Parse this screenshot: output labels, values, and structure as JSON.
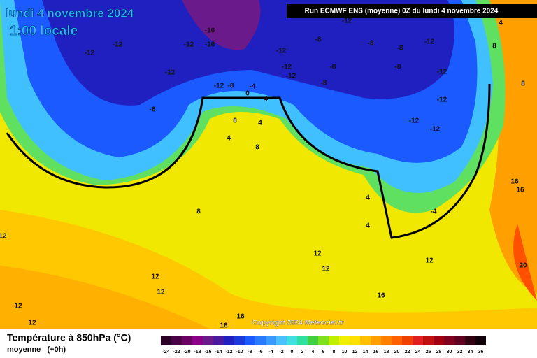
{
  "header": {
    "date": "lundi 4 novembre 2024",
    "time": "1:00 locale",
    "run": "Run ECMWF ENS (moyenne) 0Z du lundi 4 novembre 2024"
  },
  "copyright": "Copyright 2024 Meteociel.fr",
  "footer": {
    "title": "Température à 850hPa (°C)",
    "subtitle": "moyenne   (+0h)"
  },
  "contour_labels": [
    -16,
    -16,
    -12,
    -12,
    -12,
    -12,
    -12,
    -8,
    -12,
    -12,
    -12,
    -8,
    -8,
    -8,
    -8,
    -8,
    -8,
    -12,
    -12,
    -12,
    -12,
    -12,
    -12,
    -8,
    0,
    -4,
    4,
    8,
    4,
    4,
    8,
    4,
    4,
    -4,
    8,
    12,
    12,
    12,
    12,
    12,
    12,
    12,
    16,
    16,
    8,
    20,
    16,
    16,
    16,
    8,
    4,
    12
  ],
  "scale": {
    "ticks": [
      -24,
      -22,
      -20,
      -18,
      -16,
      -14,
      -12,
      -10,
      -8,
      -6,
      -4,
      -2,
      0,
      2,
      4,
      6,
      8,
      10,
      12,
      14,
      16,
      18,
      20,
      22,
      24,
      26,
      28,
      30,
      32,
      34,
      36
    ],
    "colors": [
      "#2a0028",
      "#4b0046",
      "#6a0066",
      "#8a0088",
      "#6a1a8a",
      "#4a1aa0",
      "#2020c0",
      "#1a3adc",
      "#1a5aff",
      "#2a7aff",
      "#3a9aff",
      "#4ac0ff",
      "#40e0e0",
      "#30e0a0",
      "#40d040",
      "#80e020",
      "#c0f000",
      "#f0f000",
      "#ffe000",
      "#ffc000",
      "#ffa000",
      "#ff8000",
      "#ff6000",
      "#f04000",
      "#e02020",
      "#c01010",
      "#a00010",
      "#800020",
      "#600020",
      "#300010",
      "#100008"
    ]
  }
}
